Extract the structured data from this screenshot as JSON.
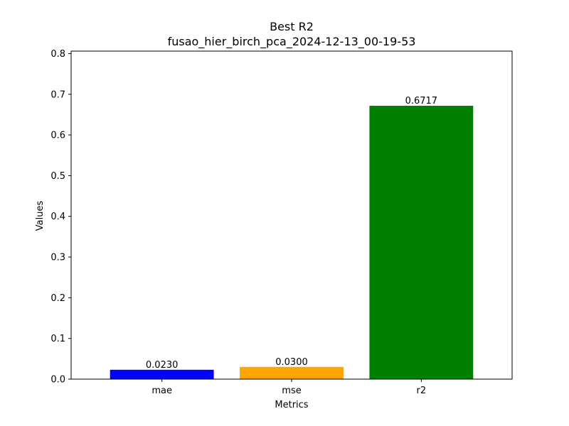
{
  "chart_data": {
    "type": "bar",
    "title": "Best R2",
    "subtitle": "fusao_hier_birch_pca_2024-12-13_00-19-53",
    "xlabel": "Metrics",
    "ylabel": "Values",
    "categories": [
      "mae",
      "mse",
      "r2"
    ],
    "values": [
      0.023,
      0.03,
      0.6717
    ],
    "value_labels": [
      "0.0230",
      "0.0300",
      "0.6717"
    ],
    "colors": [
      "#0000ff",
      "#ffa500",
      "#008000"
    ],
    "ylim": [
      0,
      0.806
    ],
    "yticks": [
      0.0,
      0.1,
      0.2,
      0.3,
      0.4,
      0.5,
      0.6,
      0.7,
      0.8
    ],
    "ytick_labels": [
      "0.0",
      "0.1",
      "0.2",
      "0.3",
      "0.4",
      "0.5",
      "0.6",
      "0.7",
      "0.8"
    ],
    "grid": false,
    "legend": "none"
  }
}
